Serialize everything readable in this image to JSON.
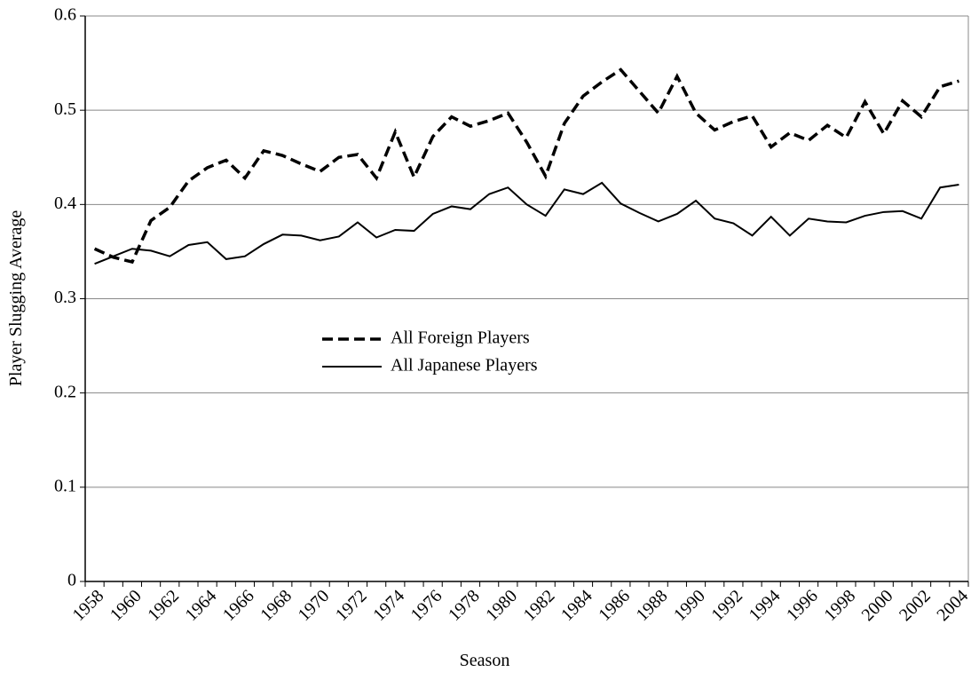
{
  "chart_data": {
    "type": "line",
    "x_label": "Season",
    "y_label": "Player Slugging Average",
    "categories": [
      "1958",
      null,
      "1960",
      null,
      "1962",
      null,
      "1964",
      null,
      "1966",
      null,
      "1968",
      null,
      "1970",
      null,
      "1972",
      null,
      "1974",
      null,
      "1976",
      null,
      "1978",
      null,
      "1980",
      null,
      "1982",
      null,
      "1984",
      null,
      "1986",
      null,
      "1988",
      null,
      "1990",
      null,
      "1992",
      null,
      "1994",
      null,
      "1996",
      null,
      "1998",
      null,
      "2000",
      null,
      "2002",
      null,
      "2004"
    ],
    "series": [
      {
        "name": "All Foreign Players",
        "color": "#000000",
        "line_style": "dashed",
        "values": [
          0.353,
          0.344,
          0.339,
          0.383,
          0.397,
          0.425,
          0.439,
          0.447,
          0.428,
          0.457,
          0.452,
          0.443,
          0.435,
          0.45,
          0.453,
          0.428,
          0.477,
          0.429,
          0.472,
          0.493,
          0.483,
          0.489,
          0.497,
          0.466,
          0.43,
          0.486,
          0.515,
          0.53,
          0.543,
          0.52,
          0.497,
          0.536,
          0.497,
          0.479,
          0.488,
          0.494,
          0.461,
          0.476,
          0.468,
          0.484,
          0.471,
          0.509,
          0.475,
          0.51,
          0.493,
          0.525,
          0.531
        ]
      },
      {
        "name": "All Japanese Players",
        "color": "#000000",
        "line_style": "solid",
        "values": [
          0.337,
          0.345,
          0.353,
          0.351,
          0.345,
          0.357,
          0.36,
          0.342,
          0.345,
          0.358,
          0.368,
          0.367,
          0.362,
          0.366,
          0.381,
          0.365,
          0.373,
          0.372,
          0.39,
          0.398,
          0.395,
          0.411,
          0.418,
          0.4,
          0.388,
          0.416,
          0.411,
          0.423,
          0.401,
          0.391,
          0.382,
          0.39,
          0.404,
          0.385,
          0.38,
          0.367,
          0.387,
          0.367,
          0.385,
          0.382,
          0.381,
          0.388,
          0.392,
          0.393,
          0.385,
          0.418,
          0.421
        ]
      }
    ],
    "ylim": [
      0,
      0.6
    ],
    "yticks": [
      0,
      0.1,
      0.2,
      0.3,
      0.4,
      0.5,
      0.6
    ],
    "grid": true
  }
}
